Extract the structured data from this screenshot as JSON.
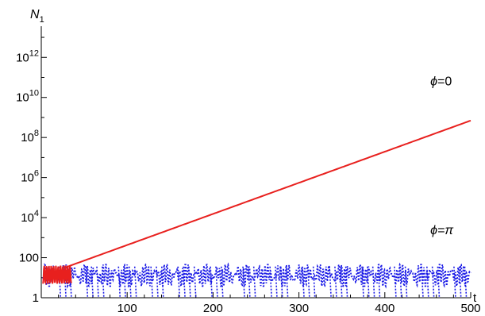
{
  "chart_data": {
    "type": "line",
    "y_scale": "log",
    "ylabel": {
      "base": "N",
      "sub": "1"
    },
    "xlabel": "t",
    "xlim": [
      0,
      500
    ],
    "ylim": [
      1,
      30000000000000
    ],
    "x_ticks": [
      {
        "value": 100,
        "label": "100"
      },
      {
        "value": 200,
        "label": "200"
      },
      {
        "value": 300,
        "label": "300"
      },
      {
        "value": 400,
        "label": "400"
      },
      {
        "value": 500,
        "label": "500"
      }
    ],
    "y_ticks": [
      {
        "value": 1,
        "base": "1",
        "exp": ""
      },
      {
        "value": 100,
        "base": "100",
        "exp": ""
      },
      {
        "value": 10000,
        "base": "10",
        "exp": "4"
      },
      {
        "value": 1000000,
        "base": "10",
        "exp": "6"
      },
      {
        "value": 100000000,
        "base": "10",
        "exp": "8"
      },
      {
        "value": 10000000000,
        "base": "10",
        "exp": "10"
      },
      {
        "value": 1000000000000,
        "base": "10",
        "exp": "12"
      }
    ],
    "grid": false,
    "series": [
      {
        "name_symbol": "ϕ",
        "name_value": "=0",
        "color": "#e8201e",
        "style": "solid",
        "label_position": {
          "t": 453,
          "N": 40000000000.0
        },
        "growth": {
          "t_start": 30,
          "N_start": 35,
          "t_end": 500,
          "N_end": 700000000.0
        },
        "initial_oscillation": {
          "t_end": 35,
          "N_min": 5,
          "N_max": 40
        }
      },
      {
        "name_symbol": "ϕ",
        "name_value": "=π",
        "color": "#1a1ae6",
        "style": "dotted",
        "label_position": {
          "t": 453,
          "N": 1500
        },
        "oscillation": {
          "N_min": 1,
          "N_max": 45
        }
      }
    ]
  }
}
